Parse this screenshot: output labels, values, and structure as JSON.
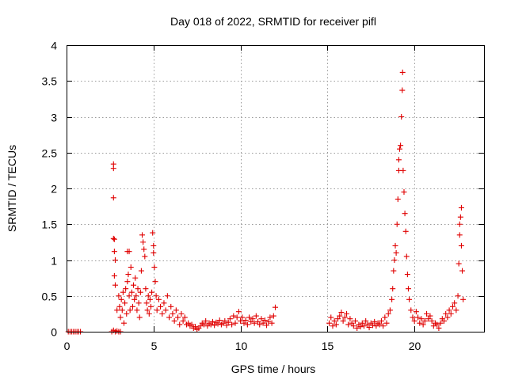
{
  "chart_data": {
    "type": "scatter",
    "title": "Day 018 of 2022, SRMTID for receiver pifl",
    "xlabel": "GPS time / hours",
    "ylabel": "SRMTID / TECUs",
    "xlim": [
      0,
      24
    ],
    "ylim": [
      0,
      4
    ],
    "xticks": [
      0,
      5,
      10,
      15,
      20
    ],
    "xtick_labels": [
      "0",
      "5",
      "10",
      "15",
      "20"
    ],
    "yticks": [
      0,
      0.5,
      1,
      1.5,
      2,
      2.5,
      3,
      3.5,
      4
    ],
    "ytick_labels": [
      "0",
      "0.5",
      "1",
      "1.5",
      "2",
      "2.5",
      "3",
      "3.5",
      "4"
    ],
    "grid": true,
    "marker": "plus",
    "color": "#e00000",
    "series": [
      {
        "name": "SRMTID",
        "points": [
          [
            0.1,
            0.0
          ],
          [
            0.2,
            0.0
          ],
          [
            0.3,
            0.0
          ],
          [
            0.4,
            0.0
          ],
          [
            0.5,
            0.0
          ],
          [
            0.6,
            0.0
          ],
          [
            0.7,
            0.0
          ],
          [
            0.8,
            0.0
          ],
          [
            2.6,
            0.0
          ],
          [
            2.7,
            0.02
          ],
          [
            2.8,
            0.0
          ],
          [
            2.9,
            0.01
          ],
          [
            3.0,
            0.0
          ],
          [
            3.1,
            0.0
          ],
          [
            2.7,
            2.34
          ],
          [
            2.7,
            2.28
          ],
          [
            2.7,
            1.87
          ],
          [
            2.7,
            1.3
          ],
          [
            2.75,
            1.29
          ],
          [
            2.75,
            1.12
          ],
          [
            2.75,
            0.78
          ],
          [
            2.8,
            0.65
          ],
          [
            2.8,
            1.0
          ],
          [
            2.9,
            0.3
          ],
          [
            3.0,
            0.5
          ],
          [
            3.05,
            0.35
          ],
          [
            3.1,
            0.2
          ],
          [
            3.15,
            0.45
          ],
          [
            3.2,
            0.3
          ],
          [
            3.25,
            0.55
          ],
          [
            3.3,
            0.12
          ],
          [
            3.35,
            0.4
          ],
          [
            3.4,
            0.6
          ],
          [
            3.45,
            0.25
          ],
          [
            3.5,
            0.7
          ],
          [
            3.5,
            1.12
          ],
          [
            3.55,
            0.8
          ],
          [
            3.6,
            0.5
          ],
          [
            3.6,
            1.12
          ],
          [
            3.65,
            0.3
          ],
          [
            3.7,
            0.9
          ],
          [
            3.75,
            0.55
          ],
          [
            3.8,
            0.35
          ],
          [
            3.85,
            0.65
          ],
          [
            3.9,
            0.45
          ],
          [
            3.95,
            0.75
          ],
          [
            4.0,
            0.5
          ],
          [
            4.05,
            0.3
          ],
          [
            4.1,
            0.6
          ],
          [
            4.15,
            0.4
          ],
          [
            4.2,
            0.2
          ],
          [
            4.25,
            0.55
          ],
          [
            4.3,
            0.85
          ],
          [
            4.35,
            1.35
          ],
          [
            4.4,
            1.25
          ],
          [
            4.45,
            1.15
          ],
          [
            4.5,
            1.05
          ],
          [
            4.55,
            0.6
          ],
          [
            4.6,
            0.4
          ],
          [
            4.65,
            0.3
          ],
          [
            4.7,
            0.5
          ],
          [
            4.75,
            0.25
          ],
          [
            4.8,
            0.45
          ],
          [
            4.85,
            0.35
          ],
          [
            4.9,
            0.55
          ],
          [
            4.95,
            1.38
          ],
          [
            5.0,
            1.2
          ],
          [
            5.0,
            1.1
          ],
          [
            5.05,
            0.9
          ],
          [
            5.1,
            0.7
          ],
          [
            5.15,
            0.5
          ],
          [
            5.2,
            0.3
          ],
          [
            5.3,
            0.45
          ],
          [
            5.4,
            0.35
          ],
          [
            5.5,
            0.25
          ],
          [
            5.6,
            0.4
          ],
          [
            5.7,
            0.3
          ],
          [
            5.8,
            0.5
          ],
          [
            5.9,
            0.2
          ],
          [
            6.0,
            0.35
          ],
          [
            6.1,
            0.25
          ],
          [
            6.2,
            0.15
          ],
          [
            6.3,
            0.3
          ],
          [
            6.4,
            0.2
          ],
          [
            6.5,
            0.1
          ],
          [
            6.6,
            0.25
          ],
          [
            6.7,
            0.15
          ],
          [
            6.8,
            0.2
          ],
          [
            6.9,
            0.1
          ],
          [
            7.0,
            0.12
          ],
          [
            7.1,
            0.08
          ],
          [
            7.2,
            0.1
          ],
          [
            7.3,
            0.05
          ],
          [
            7.4,
            0.07
          ],
          [
            7.5,
            0.03
          ],
          [
            7.6,
            0.05
          ],
          [
            7.7,
            0.08
          ],
          [
            7.8,
            0.12
          ],
          [
            7.9,
            0.1
          ],
          [
            8.0,
            0.15
          ],
          [
            8.1,
            0.08
          ],
          [
            8.2,
            0.12
          ],
          [
            8.3,
            0.1
          ],
          [
            8.4,
            0.14
          ],
          [
            8.5,
            0.09
          ],
          [
            8.6,
            0.13
          ],
          [
            8.7,
            0.11
          ],
          [
            8.8,
            0.16
          ],
          [
            8.9,
            0.1
          ],
          [
            9.0,
            0.12
          ],
          [
            9.1,
            0.15
          ],
          [
            9.2,
            0.09
          ],
          [
            9.3,
            0.13
          ],
          [
            9.4,
            0.18
          ],
          [
            9.5,
            0.1
          ],
          [
            9.6,
            0.22
          ],
          [
            9.7,
            0.12
          ],
          [
            9.8,
            0.2
          ],
          [
            9.9,
            0.28
          ],
          [
            10.0,
            0.15
          ],
          [
            10.1,
            0.2
          ],
          [
            10.2,
            0.12
          ],
          [
            10.3,
            0.16
          ],
          [
            10.4,
            0.1
          ],
          [
            10.5,
            0.2
          ],
          [
            10.6,
            0.14
          ],
          [
            10.7,
            0.18
          ],
          [
            10.8,
            0.12
          ],
          [
            10.9,
            0.22
          ],
          [
            11.0,
            0.14
          ],
          [
            11.1,
            0.1
          ],
          [
            11.2,
            0.18
          ],
          [
            11.3,
            0.12
          ],
          [
            11.4,
            0.16
          ],
          [
            11.5,
            0.09
          ],
          [
            11.6,
            0.14
          ],
          [
            11.7,
            0.2
          ],
          [
            11.8,
            0.12
          ],
          [
            11.9,
            0.22
          ],
          [
            12.0,
            0.34
          ],
          [
            15.1,
            0.12
          ],
          [
            15.2,
            0.2
          ],
          [
            15.3,
            0.08
          ],
          [
            15.4,
            0.15
          ],
          [
            15.5,
            0.1
          ],
          [
            15.6,
            0.18
          ],
          [
            15.7,
            0.22
          ],
          [
            15.8,
            0.27
          ],
          [
            15.9,
            0.15
          ],
          [
            16.0,
            0.2
          ],
          [
            16.1,
            0.25
          ],
          [
            16.2,
            0.1
          ],
          [
            16.3,
            0.18
          ],
          [
            16.4,
            0.12
          ],
          [
            16.5,
            0.08
          ],
          [
            16.6,
            0.15
          ],
          [
            16.7,
            0.05
          ],
          [
            16.8,
            0.1
          ],
          [
            16.9,
            0.07
          ],
          [
            17.0,
            0.12
          ],
          [
            17.1,
            0.08
          ],
          [
            17.2,
            0.15
          ],
          [
            17.3,
            0.1
          ],
          [
            17.4,
            0.06
          ],
          [
            17.5,
            0.12
          ],
          [
            17.6,
            0.09
          ],
          [
            17.7,
            0.14
          ],
          [
            17.8,
            0.08
          ],
          [
            17.9,
            0.12
          ],
          [
            18.0,
            0.1
          ],
          [
            18.1,
            0.15
          ],
          [
            18.2,
            0.08
          ],
          [
            18.3,
            0.2
          ],
          [
            18.4,
            0.12
          ],
          [
            18.5,
            0.25
          ],
          [
            18.6,
            0.3
          ],
          [
            18.7,
            0.45
          ],
          [
            18.75,
            0.6
          ],
          [
            18.8,
            0.85
          ],
          [
            18.85,
            1.0
          ],
          [
            18.9,
            1.2
          ],
          [
            18.95,
            1.1
          ],
          [
            19.0,
            1.5
          ],
          [
            19.05,
            1.85
          ],
          [
            19.1,
            2.25
          ],
          [
            19.1,
            2.4
          ],
          [
            19.15,
            2.55
          ],
          [
            19.2,
            2.6
          ],
          [
            19.25,
            3.0
          ],
          [
            19.3,
            3.37
          ],
          [
            19.32,
            3.62
          ],
          [
            19.35,
            2.25
          ],
          [
            19.4,
            1.95
          ],
          [
            19.45,
            1.65
          ],
          [
            19.5,
            1.4
          ],
          [
            19.55,
            1.05
          ],
          [
            19.6,
            0.8
          ],
          [
            19.65,
            0.6
          ],
          [
            19.7,
            0.45
          ],
          [
            19.8,
            0.3
          ],
          [
            19.9,
            0.2
          ],
          [
            20.0,
            0.15
          ],
          [
            20.1,
            0.28
          ],
          [
            20.2,
            0.2
          ],
          [
            20.3,
            0.12
          ],
          [
            20.4,
            0.18
          ],
          [
            20.5,
            0.1
          ],
          [
            20.6,
            0.15
          ],
          [
            20.7,
            0.25
          ],
          [
            20.8,
            0.18
          ],
          [
            20.9,
            0.22
          ],
          [
            21.0,
            0.15
          ],
          [
            21.1,
            0.08
          ],
          [
            21.2,
            0.12
          ],
          [
            21.3,
            0.1
          ],
          [
            21.4,
            0.05
          ],
          [
            21.5,
            0.12
          ],
          [
            21.6,
            0.18
          ],
          [
            21.7,
            0.15
          ],
          [
            21.8,
            0.25
          ],
          [
            21.9,
            0.2
          ],
          [
            22.0,
            0.3
          ],
          [
            22.1,
            0.25
          ],
          [
            22.2,
            0.35
          ],
          [
            22.3,
            0.4
          ],
          [
            22.4,
            0.3
          ],
          [
            22.5,
            0.5
          ],
          [
            22.55,
            0.95
          ],
          [
            22.6,
            1.35
          ],
          [
            22.6,
            1.5
          ],
          [
            22.65,
            1.6
          ],
          [
            22.7,
            1.73
          ],
          [
            22.7,
            1.2
          ],
          [
            22.75,
            0.85
          ],
          [
            22.8,
            0.45
          ]
        ]
      }
    ]
  }
}
